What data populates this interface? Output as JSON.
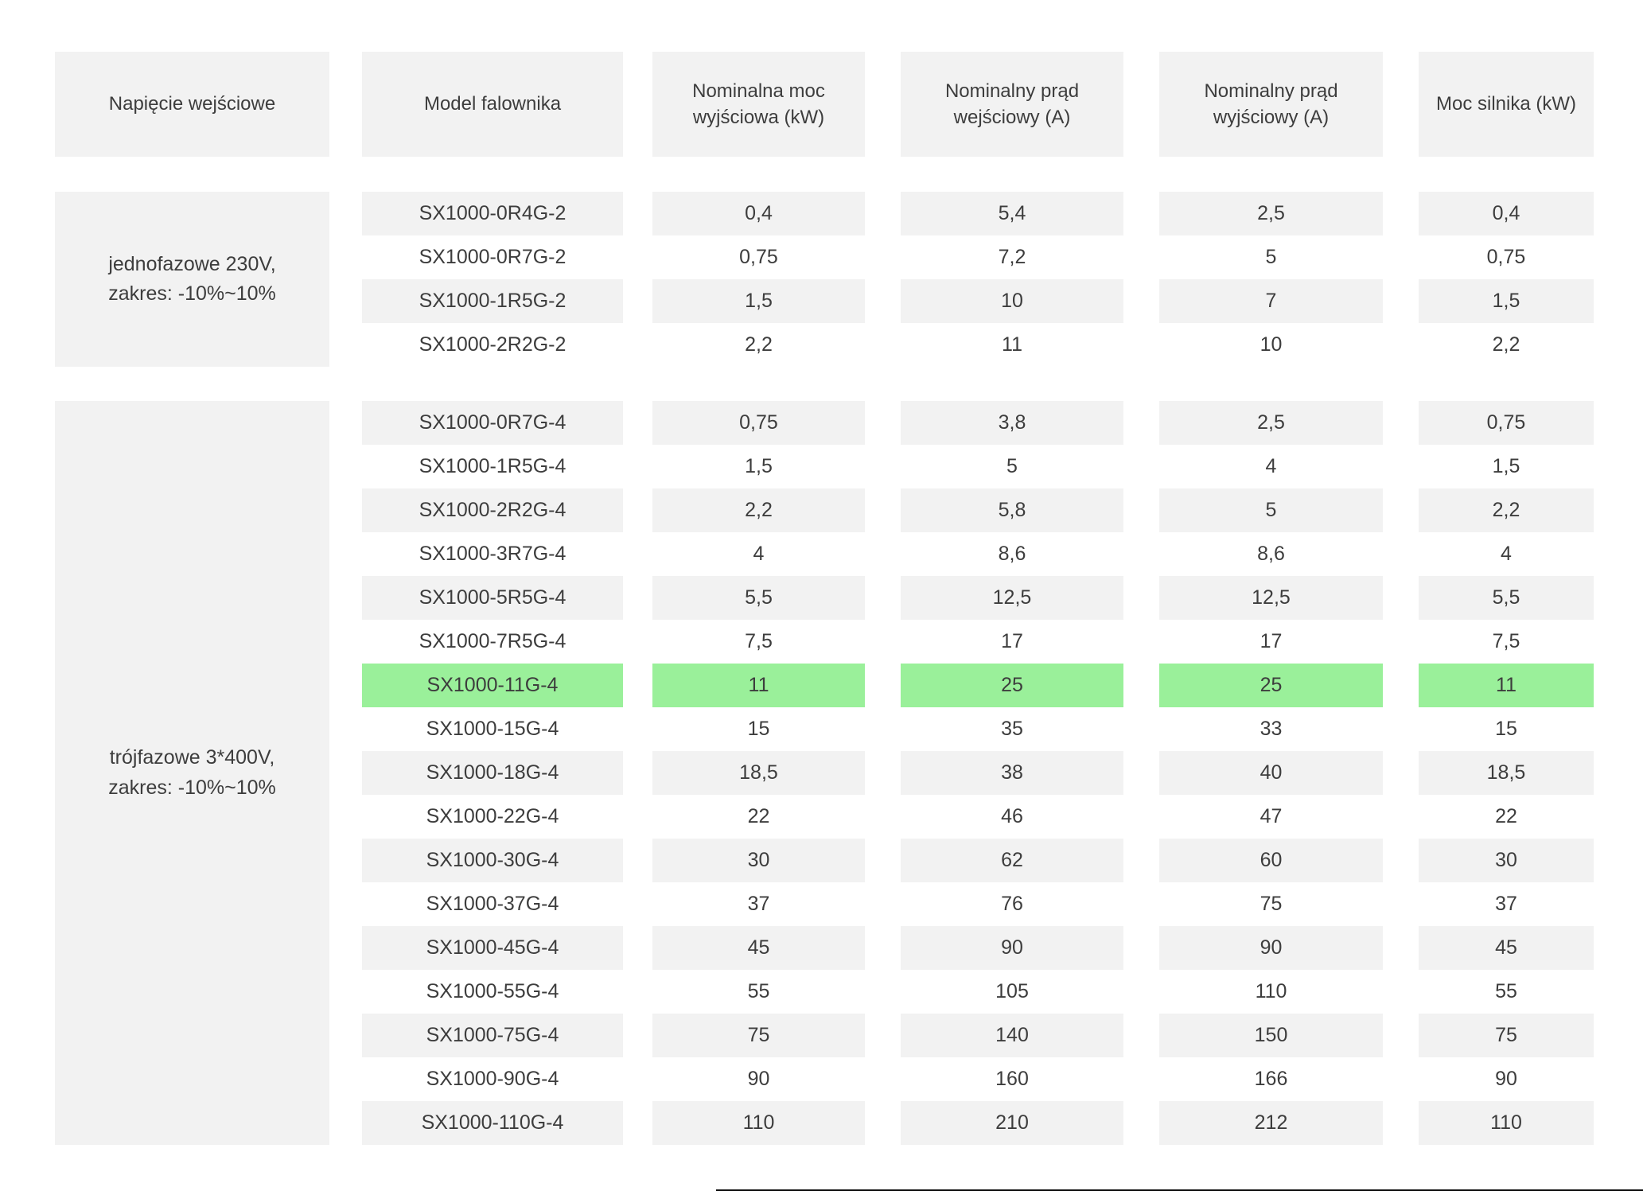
{
  "table": {
    "headers": [
      "Napięcie wejściowe",
      "Model falownika",
      "Nominalna moc wyjściowa (kW)",
      "Nominalny prąd wejściowy (A)",
      "Nominalny prąd wyjściowy (A)",
      "Moc silnika (kW)"
    ],
    "groups": [
      {
        "voltage_label": "jednofazowe 230V,\nzakres: -10%~10%",
        "rows": [
          {
            "model": "SX1000-0R4G-2",
            "output_power_kw": "0,4",
            "input_current_a": "5,4",
            "output_current_a": "2,5",
            "motor_power_kw": "0,4"
          },
          {
            "model": "SX1000-0R7G-2",
            "output_power_kw": "0,75",
            "input_current_a": "7,2",
            "output_current_a": "5",
            "motor_power_kw": "0,75"
          },
          {
            "model": "SX1000-1R5G-2",
            "output_power_kw": "1,5",
            "input_current_a": "10",
            "output_current_a": "7",
            "motor_power_kw": "1,5"
          },
          {
            "model": "SX1000-2R2G-2",
            "output_power_kw": "2,2",
            "input_current_a": "11",
            "output_current_a": "10",
            "motor_power_kw": "2,2"
          }
        ]
      },
      {
        "voltage_label": "trójfazowe 3*400V,\nzakres: -10%~10%",
        "rows": [
          {
            "model": "SX1000-0R7G-4",
            "output_power_kw": "0,75",
            "input_current_a": "3,8",
            "output_current_a": "2,5",
            "motor_power_kw": "0,75"
          },
          {
            "model": "SX1000-1R5G-4",
            "output_power_kw": "1,5",
            "input_current_a": "5",
            "output_current_a": "4",
            "motor_power_kw": "1,5"
          },
          {
            "model": "SX1000-2R2G-4",
            "output_power_kw": "2,2",
            "input_current_a": "5,8",
            "output_current_a": "5",
            "motor_power_kw": "2,2"
          },
          {
            "model": "SX1000-3R7G-4",
            "output_power_kw": "4",
            "input_current_a": "8,6",
            "output_current_a": "8,6",
            "motor_power_kw": "4"
          },
          {
            "model": "SX1000-5R5G-4",
            "output_power_kw": "5,5",
            "input_current_a": "12,5",
            "output_current_a": "12,5",
            "motor_power_kw": "5,5"
          },
          {
            "model": "SX1000-7R5G-4",
            "output_power_kw": "7,5",
            "input_current_a": "17",
            "output_current_a": "17",
            "motor_power_kw": "7,5"
          },
          {
            "model": "SX1000-11G-4",
            "output_power_kw": "11",
            "input_current_a": "25",
            "output_current_a": "25",
            "motor_power_kw": "11",
            "highlight": true
          },
          {
            "model": "SX1000-15G-4",
            "output_power_kw": "15",
            "input_current_a": "35",
            "output_current_a": "33",
            "motor_power_kw": "15"
          },
          {
            "model": "SX1000-18G-4",
            "output_power_kw": "18,5",
            "input_current_a": "38",
            "output_current_a": "40",
            "motor_power_kw": "18,5"
          },
          {
            "model": "SX1000-22G-4",
            "output_power_kw": "22",
            "input_current_a": "46",
            "output_current_a": "47",
            "motor_power_kw": "22"
          },
          {
            "model": "SX1000-30G-4",
            "output_power_kw": "30",
            "input_current_a": "62",
            "output_current_a": "60",
            "motor_power_kw": "30"
          },
          {
            "model": "SX1000-37G-4",
            "output_power_kw": "37",
            "input_current_a": "76",
            "output_current_a": "75",
            "motor_power_kw": "37"
          },
          {
            "model": "SX1000-45G-4",
            "output_power_kw": "45",
            "input_current_a": "90",
            "output_current_a": "90",
            "motor_power_kw": "45"
          },
          {
            "model": "SX1000-55G-4",
            "output_power_kw": "55",
            "input_current_a": "105",
            "output_current_a": "110",
            "motor_power_kw": "55"
          },
          {
            "model": "SX1000-75G-4",
            "output_power_kw": "75",
            "input_current_a": "140",
            "output_current_a": "150",
            "motor_power_kw": "75"
          },
          {
            "model": "SX1000-90G-4",
            "output_power_kw": "90",
            "input_current_a": "160",
            "output_current_a": "166",
            "motor_power_kw": "90"
          },
          {
            "model": "SX1000-110G-4",
            "output_power_kw": "110",
            "input_current_a": "210",
            "output_current_a": "212",
            "motor_power_kw": "110"
          }
        ]
      }
    ]
  },
  "colors": {
    "row_shade": "#f2f2f2",
    "highlight_green": "#9af09a",
    "text": "#3d3d3d"
  }
}
